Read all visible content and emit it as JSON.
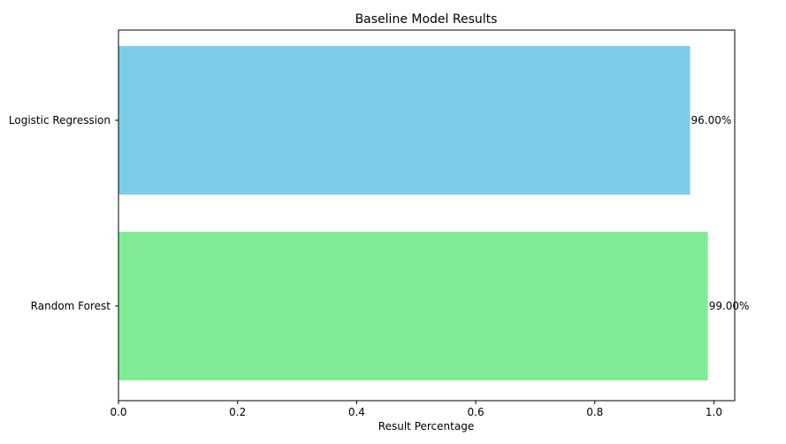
{
  "chart_data": {
    "type": "bar",
    "orientation": "horizontal",
    "title": "Baseline Model Results",
    "xlabel": "Result Percentage",
    "ylabel": "",
    "xlim": [
      0,
      1.035
    ],
    "x_ticks": [
      0.0,
      0.2,
      0.4,
      0.6,
      0.8,
      1.0
    ],
    "x_tick_labels": [
      "0.0",
      "0.2",
      "0.4",
      "0.6",
      "0.8",
      "1.0"
    ],
    "categories": [
      "Logistic Regression",
      "Random Forest"
    ],
    "values": [
      0.96,
      0.99
    ],
    "value_labels": [
      "96.00%",
      "99.00%"
    ],
    "colors": [
      "#7ccde9",
      "#80ec96"
    ],
    "grid": false,
    "legend": "none"
  }
}
